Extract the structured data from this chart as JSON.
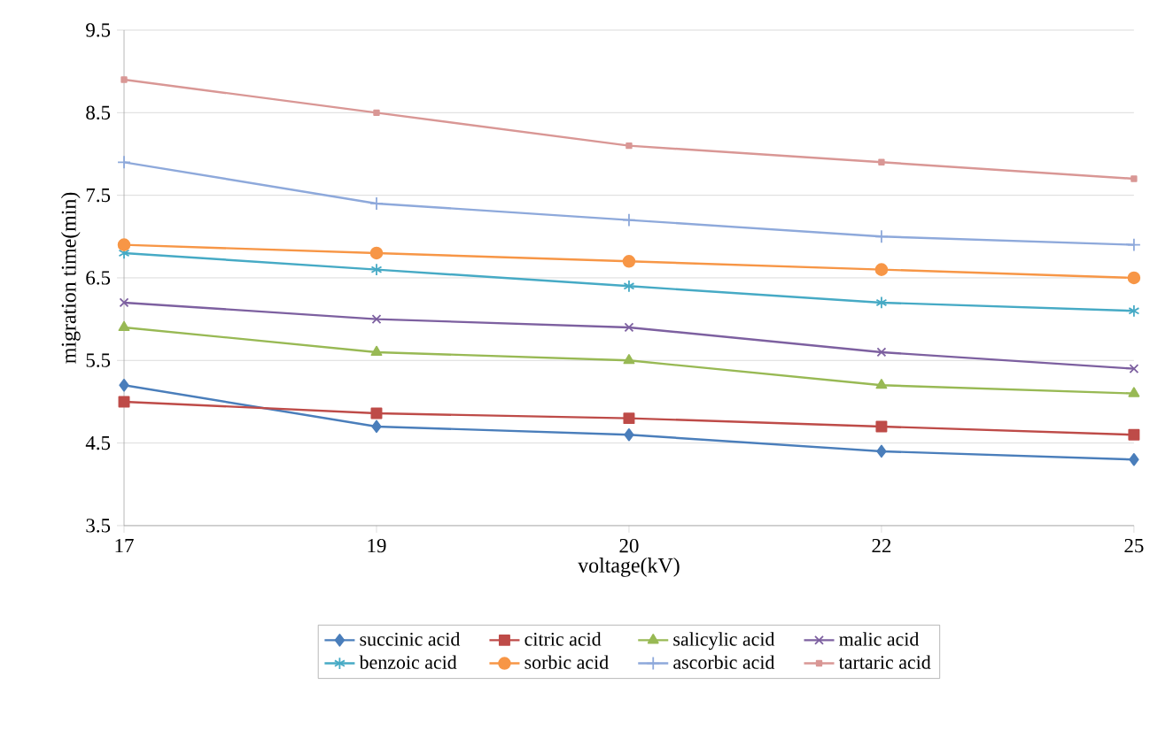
{
  "chart_data": {
    "type": "line",
    "xlabel": "voltage(kV)",
    "ylabel": "migration time(min)",
    "categories": [
      "17",
      "19",
      "20",
      "22",
      "25"
    ],
    "ylim": [
      3.5,
      9.5
    ],
    "yticks": [
      3.5,
      4.5,
      5.5,
      6.5,
      7.5,
      8.5,
      9.5
    ],
    "grid": "y",
    "legend": "bottom",
    "series": [
      {
        "name": "succinic acid",
        "color": "#4a7ebb",
        "marker": "diamond",
        "values": [
          5.2,
          4.7,
          4.6,
          4.4,
          4.3
        ]
      },
      {
        "name": "citric acid",
        "color": "#be4b48",
        "marker": "square",
        "values": [
          5.0,
          4.86,
          4.8,
          4.7,
          4.6
        ]
      },
      {
        "name": "salicylic acid",
        "color": "#98b954",
        "marker": "triangle",
        "values": [
          5.9,
          5.6,
          5.5,
          5.2,
          5.1
        ]
      },
      {
        "name": "malic acid",
        "color": "#7d60a0",
        "marker": "cross",
        "values": [
          6.2,
          6.0,
          5.9,
          5.6,
          5.4
        ]
      },
      {
        "name": "benzoic acid",
        "color": "#46aac5",
        "marker": "cross",
        "values": [
          6.8,
          6.6,
          6.4,
          6.2,
          6.1
        ]
      },
      {
        "name": "sorbic acid",
        "color": "#f79646",
        "marker": "circle",
        "values": [
          6.9,
          6.8,
          6.7,
          6.6,
          6.5
        ]
      },
      {
        "name": "ascorbic acid",
        "color": "#8ea9db",
        "marker": "plus",
        "values": [
          7.9,
          7.4,
          7.2,
          7.0,
          6.9
        ]
      },
      {
        "name": "tartaric acid",
        "color": "#d99795",
        "marker": "square",
        "values": [
          8.9,
          8.5,
          8.1,
          7.9,
          7.7
        ]
      }
    ]
  }
}
